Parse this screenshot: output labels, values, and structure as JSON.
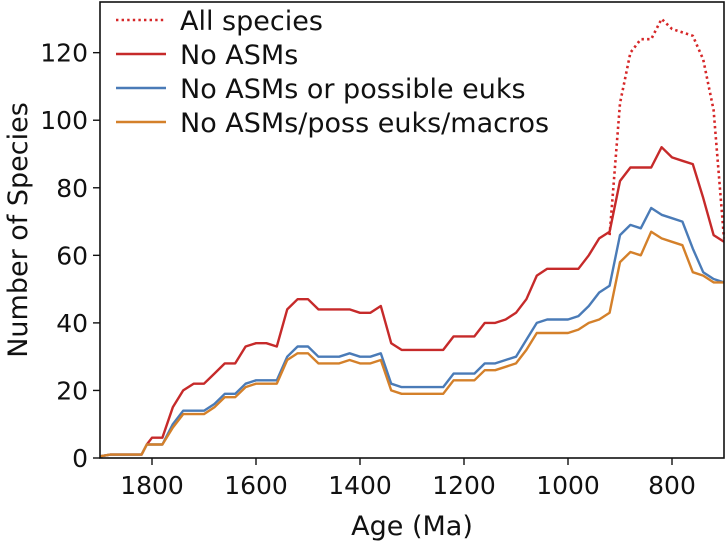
{
  "chart_data": {
    "type": "line",
    "title": "",
    "xlabel": "Age (Ma)",
    "ylabel": "Number of Species",
    "xlim": [
      1900,
      700
    ],
    "ylim": [
      0,
      135
    ],
    "x_reversed": true,
    "xticks": [
      1800,
      1600,
      1400,
      1200,
      1000,
      800
    ],
    "yticks": [
      0,
      20,
      40,
      60,
      80,
      100,
      120
    ],
    "grid": false,
    "legend_position": "top-left",
    "series": [
      {
        "name": "All species",
        "color": "#d62728",
        "style": "dotted",
        "x": [
          920,
          900,
          880,
          860,
          840,
          820,
          800,
          780,
          760,
          740,
          720,
          700
        ],
        "y": [
          66,
          105,
          120,
          124,
          124,
          130,
          127,
          126,
          125,
          118,
          103,
          65
        ]
      },
      {
        "name": "No ASMs",
        "color": "#c62a2a",
        "style": "solid",
        "x": [
          1900,
          1880,
          1860,
          1840,
          1820,
          1810,
          1800,
          1780,
          1760,
          1740,
          1720,
          1700,
          1680,
          1660,
          1640,
          1620,
          1600,
          1580,
          1560,
          1540,
          1520,
          1500,
          1480,
          1460,
          1440,
          1420,
          1400,
          1380,
          1360,
          1340,
          1320,
          1300,
          1280,
          1260,
          1240,
          1220,
          1200,
          1180,
          1160,
          1140,
          1120,
          1100,
          1080,
          1060,
          1040,
          1020,
          1000,
          980,
          960,
          940,
          920,
          900,
          880,
          860,
          840,
          820,
          800,
          780,
          760,
          740,
          720,
          700
        ],
        "y": [
          0.5,
          1,
          1,
          1,
          1,
          4,
          6,
          6,
          15,
          20,
          22,
          22,
          25,
          28,
          28,
          33,
          34,
          34,
          33,
          44,
          47,
          47,
          44,
          44,
          44,
          44,
          43,
          43,
          45,
          34,
          32,
          32,
          32,
          32,
          32,
          36,
          36,
          36,
          40,
          40,
          41,
          43,
          47,
          54,
          56,
          56,
          56,
          56,
          60,
          65,
          67,
          82,
          86,
          86,
          86,
          92,
          89,
          88,
          87,
          77,
          66,
          64
        ]
      },
      {
        "name": "No ASMs or possible euks",
        "color": "#4a7bb7",
        "style": "solid",
        "x": [
          1900,
          1880,
          1860,
          1840,
          1820,
          1810,
          1800,
          1780,
          1760,
          1740,
          1720,
          1700,
          1680,
          1660,
          1640,
          1620,
          1600,
          1580,
          1560,
          1540,
          1520,
          1500,
          1480,
          1460,
          1440,
          1420,
          1400,
          1380,
          1360,
          1340,
          1320,
          1300,
          1280,
          1260,
          1240,
          1220,
          1200,
          1180,
          1160,
          1140,
          1120,
          1100,
          1080,
          1060,
          1040,
          1020,
          1000,
          980,
          960,
          940,
          920,
          900,
          880,
          860,
          840,
          820,
          800,
          780,
          760,
          740,
          720,
          700
        ],
        "y": [
          0.5,
          1,
          1,
          1,
          1,
          4,
          4,
          4,
          10,
          14,
          14,
          14,
          16,
          19,
          19,
          22,
          23,
          23,
          23,
          30,
          33,
          33,
          30,
          30,
          30,
          31,
          30,
          30,
          31,
          22,
          21,
          21,
          21,
          21,
          21,
          25,
          25,
          25,
          28,
          28,
          29,
          30,
          35,
          40,
          41,
          41,
          41,
          42,
          45,
          49,
          51,
          66,
          69,
          68,
          74,
          72,
          71,
          70,
          62,
          55,
          53,
          52
        ]
      },
      {
        "name": "No ASMs/poss euks/macros",
        "color": "#d4802a",
        "style": "solid",
        "x": [
          1900,
          1880,
          1860,
          1840,
          1820,
          1810,
          1800,
          1780,
          1760,
          1740,
          1720,
          1700,
          1680,
          1660,
          1640,
          1620,
          1600,
          1580,
          1560,
          1540,
          1520,
          1500,
          1480,
          1460,
          1440,
          1420,
          1400,
          1380,
          1360,
          1340,
          1320,
          1300,
          1280,
          1260,
          1240,
          1220,
          1200,
          1180,
          1160,
          1140,
          1120,
          1100,
          1080,
          1060,
          1040,
          1020,
          1000,
          980,
          960,
          940,
          920,
          900,
          880,
          860,
          840,
          820,
          800,
          780,
          760,
          740,
          720,
          700
        ],
        "y": [
          0.5,
          1,
          1,
          1,
          1,
          4,
          4,
          4,
          9,
          13,
          13,
          13,
          15,
          18,
          18,
          21,
          22,
          22,
          22,
          29,
          31,
          31,
          28,
          28,
          28,
          29,
          28,
          28,
          29,
          20,
          19,
          19,
          19,
          19,
          19,
          23,
          23,
          23,
          26,
          26,
          27,
          28,
          32,
          37,
          37,
          37,
          37,
          38,
          40,
          41,
          43,
          58,
          61,
          60,
          67,
          65,
          64,
          63,
          55,
          54,
          52,
          52
        ]
      }
    ]
  }
}
